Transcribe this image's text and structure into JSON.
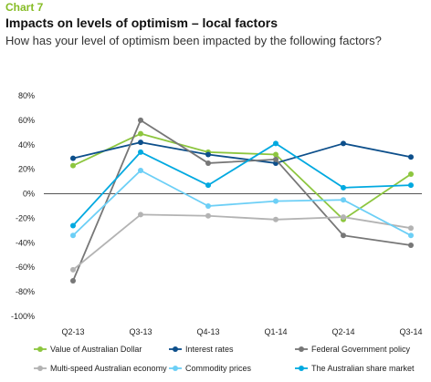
{
  "header": {
    "chart_label": "Chart 7",
    "title": "Impacts on levels of optimism – local factors",
    "subtitle": "How has your level of optimism been impacted by the following factors?"
  },
  "chart_data": {
    "type": "line",
    "categories": [
      "Q2-13",
      "Q3-13",
      "Q4-13",
      "Q1-14",
      "Q2-14",
      "Q3-14"
    ],
    "yticks": [
      "80%",
      "60%",
      "40%",
      "20%",
      "0%",
      "-20%",
      "-40%",
      "-60%",
      "-80%",
      "-100%"
    ],
    "ylim": [
      -100,
      80
    ],
    "grid": false,
    "legend_position": "bottom",
    "series": [
      {
        "name": "Value of Australian Dollar",
        "color": "#8dc63f",
        "values": [
          23,
          49,
          34,
          32,
          -21,
          16
        ]
      },
      {
        "name": "Interest rates",
        "color": "#0d4f8b",
        "values": [
          29,
          42,
          32,
          25,
          41,
          30
        ]
      },
      {
        "name": "Federal Government policy",
        "color": "#777777",
        "values": [
          -71,
          60,
          25,
          28,
          -34,
          -42
        ]
      },
      {
        "name": "Multi-speed Australian economy",
        "color": "#b3b3b3",
        "values": [
          -62,
          -17,
          -18,
          -21,
          -19,
          -28
        ]
      },
      {
        "name": "Commodity prices",
        "color": "#6ccff6",
        "values": [
          -34,
          19,
          -10,
          -6,
          -5,
          -34
        ]
      },
      {
        "name": "The Australian share market",
        "color": "#00a9e0",
        "values": [
          -26,
          34,
          7,
          41,
          5,
          7
        ]
      }
    ]
  }
}
